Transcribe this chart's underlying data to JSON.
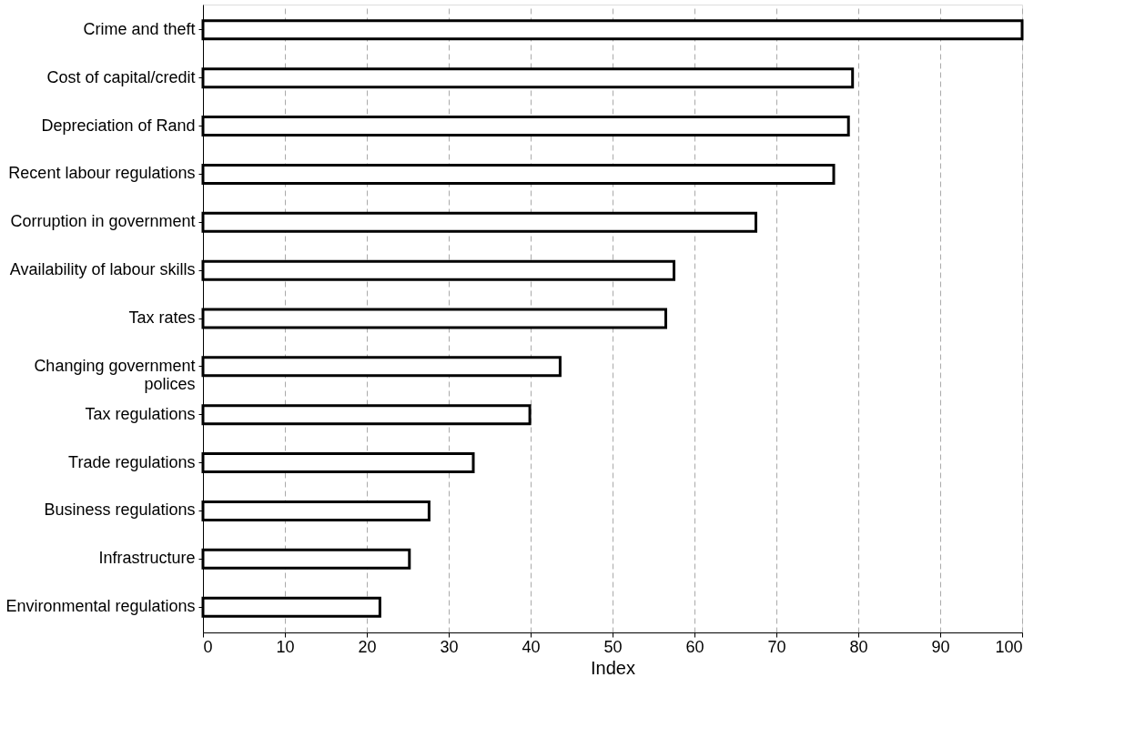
{
  "chart_data": {
    "type": "bar",
    "orientation": "horizontal",
    "xlabel": "Index",
    "categories": [
      "Crime and theft",
      "Cost of capital/credit",
      "Depreciation of Rand",
      "Recent labour regulations",
      "Corruption in government",
      "Availability of labour skills",
      "Tax rates",
      "Changing government\npolices",
      "Tax regulations",
      "Trade regulations",
      "Business regulations",
      "Infrastructure",
      "Environmental regulations"
    ],
    "values": [
      100,
      79.3,
      78.8,
      77,
      67.5,
      57.5,
      56.5,
      43.6,
      39.9,
      33,
      27.6,
      25.2,
      21.6
    ],
    "color": "#ffffff",
    "xlim": [
      0,
      100
    ],
    "xticks": [
      0,
      10,
      20,
      30,
      40,
      50,
      60,
      70,
      80,
      90,
      100
    ],
    "grid": "x"
  }
}
